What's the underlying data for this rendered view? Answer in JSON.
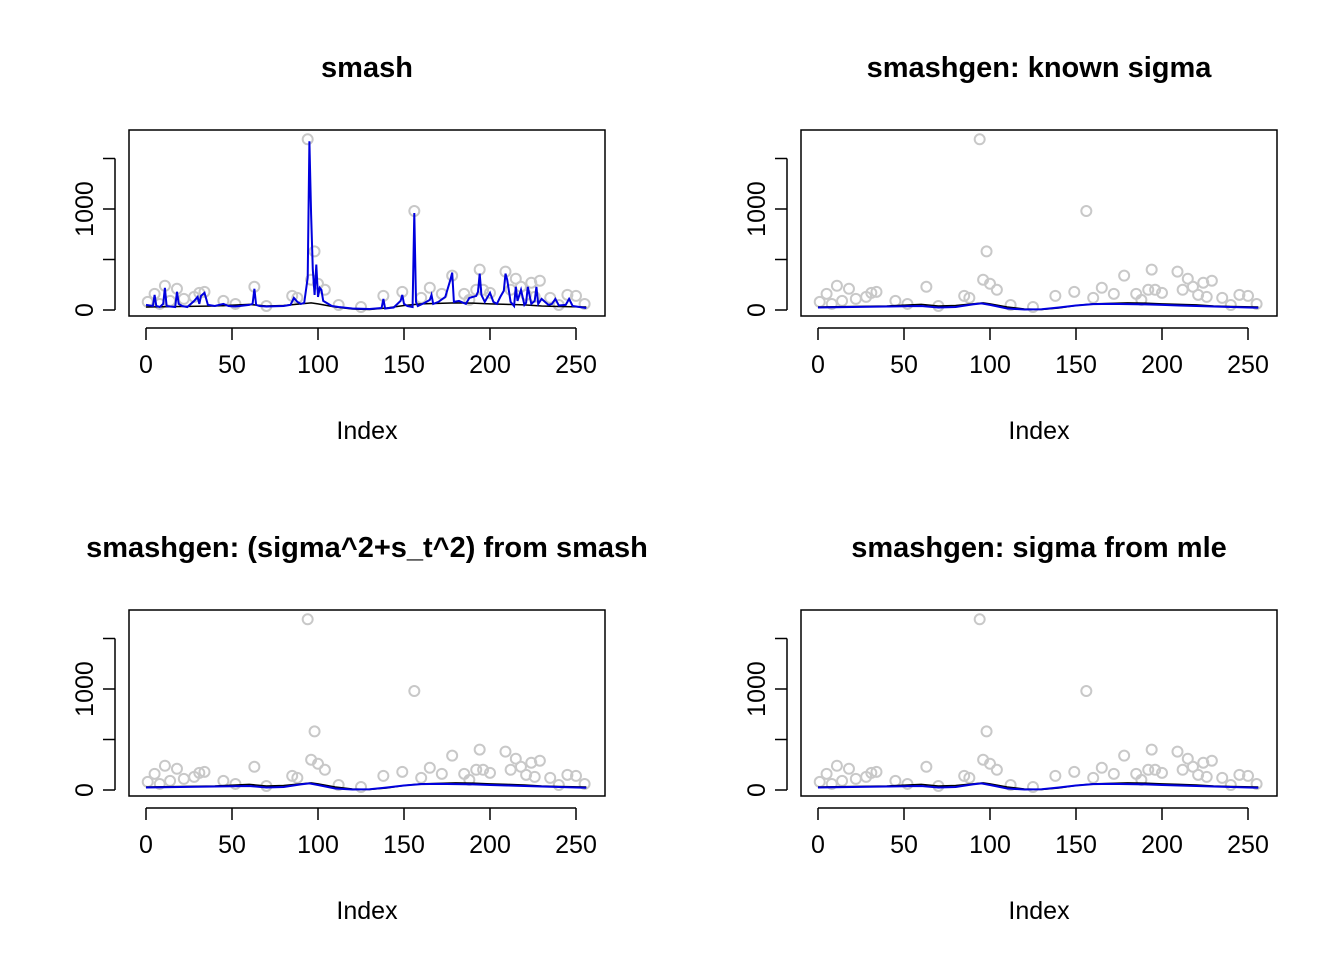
{
  "chart_data": [
    {
      "type": "line",
      "title": "smash",
      "xlabel": "Index",
      "ylabel": "",
      "xlim": [
        0,
        256
      ],
      "ylim": [
        0,
        1700
      ],
      "xticks": [
        "0",
        "50",
        "100",
        "150",
        "200",
        "250"
      ],
      "yticks": [
        "0",
        "1000"
      ],
      "series": [
        {
          "role": "observations",
          "style": "points",
          "color": "#c8c8c8",
          "x": [
            1,
            5,
            8,
            11,
            14,
            18,
            22,
            28,
            31,
            34,
            45,
            52,
            63,
            70,
            85,
            88,
            94,
            96,
            98,
            100,
            104,
            112,
            125,
            138,
            149,
            156,
            160,
            165,
            172,
            178,
            185,
            188,
            192,
            194,
            196,
            200,
            209,
            212,
            215,
            218,
            221,
            224,
            226,
            229,
            235,
            240,
            245,
            250,
            255
          ],
          "y": [
            80,
            160,
            60,
            240,
            90,
            210,
            110,
            130,
            170,
            180,
            90,
            60,
            230,
            40,
            140,
            120,
            1690,
            300,
            580,
            260,
            200,
            50,
            30,
            140,
            180,
            980,
            120,
            220,
            160,
            340,
            160,
            100,
            200,
            400,
            200,
            170,
            380,
            200,
            310,
            230,
            150,
            270,
            130,
            290,
            120,
            50,
            150,
            140,
            60
          ]
        },
        {
          "role": "truth",
          "style": "line",
          "color": "#000000",
          "x": [
            0,
            20,
            40,
            60,
            70,
            80,
            90,
            96,
            100,
            110,
            120,
            130,
            140,
            150,
            160,
            170,
            180,
            190,
            200,
            210,
            220,
            230,
            240,
            256
          ],
          "y": [
            30,
            35,
            40,
            55,
            40,
            45,
            60,
            70,
            60,
            30,
            10,
            5,
            20,
            45,
            60,
            65,
            70,
            68,
            60,
            55,
            50,
            40,
            35,
            30
          ]
        },
        {
          "role": "smash estimate",
          "style": "line",
          "color": "#0000dd",
          "x": [
            0,
            4,
            5,
            6,
            8,
            10,
            11,
            12,
            14,
            17,
            18,
            19,
            21,
            24,
            28,
            30,
            31,
            32,
            34,
            36,
            40,
            45,
            48,
            52,
            60,
            62,
            63,
            64,
            66,
            70,
            80,
            84,
            86,
            88,
            90,
            92,
            94,
            95,
            96,
            97,
            98,
            99,
            100,
            101,
            102,
            103,
            104,
            106,
            108,
            112,
            120,
            130,
            137,
            138,
            139,
            144,
            148,
            149,
            150,
            152,
            155,
            156,
            157,
            158,
            162,
            165,
            166,
            167,
            170,
            174,
            177,
            178,
            179,
            182,
            186,
            188,
            192,
            193,
            194,
            195,
            197,
            200,
            202,
            204,
            206,
            208,
            209,
            210,
            212,
            214,
            215,
            216,
            218,
            220,
            221,
            222,
            224,
            226,
            227,
            228,
            230,
            232,
            234,
            236,
            238,
            240,
            244,
            246,
            248,
            252,
            256
          ],
          "y": [
            50,
            40,
            150,
            40,
            30,
            60,
            220,
            40,
            35,
            30,
            180,
            60,
            40,
            30,
            90,
            130,
            60,
            140,
            170,
            50,
            40,
            60,
            40,
            35,
            50,
            60,
            210,
            50,
            40,
            35,
            40,
            50,
            120,
            80,
            60,
            70,
            320,
            1670,
            950,
            400,
            150,
            450,
            130,
            220,
            200,
            90,
            80,
            60,
            40,
            30,
            15,
            10,
            20,
            110,
            15,
            25,
            90,
            150,
            60,
            40,
            30,
            960,
            80,
            40,
            70,
            100,
            150,
            60,
            80,
            130,
            300,
            370,
            80,
            90,
            60,
            120,
            140,
            180,
            360,
            150,
            80,
            170,
            80,
            60,
            130,
            190,
            360,
            300,
            80,
            40,
            230,
            90,
            200,
            50,
            70,
            230,
            60,
            90,
            230,
            60,
            110,
            80,
            50,
            60,
            110,
            45,
            50,
            110,
            40,
            30,
            20
          ]
        }
      ]
    },
    {
      "type": "line",
      "title": "smashgen: known sigma",
      "xlabel": "Index",
      "ylabel": "",
      "xlim": [
        0,
        256
      ],
      "ylim": [
        0,
        1700
      ],
      "xticks": [
        "0",
        "50",
        "100",
        "150",
        "200",
        "250"
      ],
      "yticks": [
        "0",
        "1000"
      ],
      "series": [
        {
          "role": "observations",
          "style": "points",
          "color": "#c8c8c8",
          "x": [
            1,
            5,
            8,
            11,
            14,
            18,
            22,
            28,
            31,
            34,
            45,
            52,
            63,
            70,
            85,
            88,
            94,
            96,
            98,
            100,
            104,
            112,
            125,
            138,
            149,
            156,
            160,
            165,
            172,
            178,
            185,
            188,
            192,
            194,
            196,
            200,
            209,
            212,
            215,
            218,
            221,
            224,
            226,
            229,
            235,
            240,
            245,
            250,
            255
          ],
          "y": [
            80,
            160,
            60,
            240,
            90,
            210,
            110,
            130,
            170,
            180,
            90,
            60,
            230,
            40,
            140,
            120,
            1690,
            300,
            580,
            260,
            200,
            50,
            30,
            140,
            180,
            980,
            120,
            220,
            160,
            340,
            160,
            100,
            200,
            400,
            200,
            170,
            380,
            200,
            310,
            230,
            150,
            270,
            130,
            290,
            120,
            50,
            150,
            140,
            60
          ]
        },
        {
          "role": "truth",
          "style": "line",
          "color": "#000000",
          "x": [
            0,
            20,
            40,
            60,
            70,
            80,
            90,
            96,
            100,
            110,
            120,
            130,
            140,
            150,
            160,
            170,
            180,
            190,
            200,
            210,
            220,
            230,
            240,
            256
          ],
          "y": [
            30,
            35,
            40,
            55,
            40,
            45,
            60,
            70,
            60,
            30,
            10,
            5,
            20,
            45,
            60,
            65,
            70,
            68,
            60,
            55,
            50,
            40,
            35,
            30
          ]
        },
        {
          "role": "estimate",
          "style": "line",
          "color": "#0000dd",
          "x": [
            0,
            10,
            20,
            30,
            40,
            50,
            60,
            70,
            80,
            90,
            95,
            100,
            110,
            120,
            130,
            140,
            150,
            160,
            170,
            180,
            190,
            200,
            210,
            220,
            230,
            240,
            250,
            256
          ],
          "y": [
            25,
            28,
            30,
            32,
            35,
            38,
            40,
            25,
            30,
            55,
            65,
            50,
            15,
            5,
            8,
            25,
            45,
            58,
            60,
            58,
            55,
            50,
            45,
            40,
            35,
            30,
            25,
            22
          ]
        }
      ]
    },
    {
      "type": "line",
      "title": "smashgen: (sigma^2+s_t^2) from smash",
      "xlabel": "Index",
      "ylabel": "",
      "xlim": [
        0,
        256
      ],
      "ylim": [
        0,
        1700
      ],
      "xticks": [
        "0",
        "50",
        "100",
        "150",
        "200",
        "250"
      ],
      "yticks": [
        "0",
        "1000"
      ],
      "series": [
        {
          "role": "observations",
          "style": "points",
          "color": "#c8c8c8",
          "x": [
            1,
            5,
            8,
            11,
            14,
            18,
            22,
            28,
            31,
            34,
            45,
            52,
            63,
            70,
            85,
            88,
            94,
            96,
            98,
            100,
            104,
            112,
            125,
            138,
            149,
            156,
            160,
            165,
            172,
            178,
            185,
            188,
            192,
            194,
            196,
            200,
            209,
            212,
            215,
            218,
            221,
            224,
            226,
            229,
            235,
            240,
            245,
            250,
            255
          ],
          "y": [
            80,
            160,
            60,
            240,
            90,
            210,
            110,
            130,
            170,
            180,
            90,
            60,
            230,
            40,
            140,
            120,
            1690,
            300,
            580,
            260,
            200,
            50,
            30,
            140,
            180,
            980,
            120,
            220,
            160,
            340,
            160,
            100,
            200,
            400,
            200,
            170,
            380,
            200,
            310,
            230,
            150,
            270,
            130,
            290,
            120,
            50,
            150,
            140,
            60
          ]
        },
        {
          "role": "truth",
          "style": "line",
          "color": "#000000",
          "x": [
            0,
            20,
            40,
            60,
            70,
            80,
            90,
            96,
            100,
            110,
            120,
            130,
            140,
            150,
            160,
            170,
            180,
            190,
            200,
            210,
            220,
            230,
            240,
            256
          ],
          "y": [
            30,
            35,
            40,
            55,
            40,
            45,
            60,
            70,
            60,
            30,
            10,
            5,
            20,
            45,
            60,
            65,
            70,
            68,
            60,
            55,
            50,
            40,
            35,
            30
          ]
        },
        {
          "role": "estimate",
          "style": "line",
          "color": "#0000dd",
          "x": [
            0,
            10,
            20,
            30,
            40,
            50,
            60,
            70,
            80,
            90,
            95,
            100,
            110,
            120,
            130,
            140,
            150,
            160,
            170,
            180,
            190,
            200,
            210,
            220,
            230,
            240,
            250,
            256
          ],
          "y": [
            25,
            28,
            30,
            32,
            35,
            38,
            40,
            25,
            30,
            55,
            65,
            50,
            15,
            5,
            8,
            25,
            45,
            58,
            60,
            58,
            55,
            50,
            45,
            40,
            35,
            30,
            25,
            22
          ]
        }
      ]
    },
    {
      "type": "line",
      "title": "smashgen: sigma from mle",
      "xlabel": "Index",
      "ylabel": "",
      "xlim": [
        0,
        256
      ],
      "ylim": [
        0,
        1700
      ],
      "xticks": [
        "0",
        "50",
        "100",
        "150",
        "200",
        "250"
      ],
      "yticks": [
        "0",
        "1000"
      ],
      "series": [
        {
          "role": "observations",
          "style": "points",
          "color": "#c8c8c8",
          "x": [
            1,
            5,
            8,
            11,
            14,
            18,
            22,
            28,
            31,
            34,
            45,
            52,
            63,
            70,
            85,
            88,
            94,
            96,
            98,
            100,
            104,
            112,
            125,
            138,
            149,
            156,
            160,
            165,
            172,
            178,
            185,
            188,
            192,
            194,
            196,
            200,
            209,
            212,
            215,
            218,
            221,
            224,
            226,
            229,
            235,
            240,
            245,
            250,
            255
          ],
          "y": [
            80,
            160,
            60,
            240,
            90,
            210,
            110,
            130,
            170,
            180,
            90,
            60,
            230,
            40,
            140,
            120,
            1690,
            300,
            580,
            260,
            200,
            50,
            30,
            140,
            180,
            980,
            120,
            220,
            160,
            340,
            160,
            100,
            200,
            400,
            200,
            170,
            380,
            200,
            310,
            230,
            150,
            270,
            130,
            290,
            120,
            50,
            150,
            140,
            60
          ]
        },
        {
          "role": "truth",
          "style": "line",
          "color": "#000000",
          "x": [
            0,
            20,
            40,
            60,
            70,
            80,
            90,
            96,
            100,
            110,
            120,
            130,
            140,
            150,
            160,
            170,
            180,
            190,
            200,
            210,
            220,
            230,
            240,
            256
          ],
          "y": [
            30,
            35,
            40,
            55,
            40,
            45,
            60,
            70,
            60,
            30,
            10,
            5,
            20,
            45,
            60,
            65,
            70,
            68,
            60,
            55,
            50,
            40,
            35,
            30
          ]
        },
        {
          "role": "estimate",
          "style": "line",
          "color": "#0000dd",
          "x": [
            0,
            10,
            20,
            30,
            40,
            50,
            60,
            70,
            80,
            90,
            95,
            100,
            110,
            120,
            130,
            140,
            150,
            160,
            170,
            180,
            190,
            200,
            210,
            220,
            230,
            240,
            250,
            256
          ],
          "y": [
            25,
            28,
            30,
            32,
            35,
            38,
            40,
            25,
            30,
            55,
            65,
            50,
            15,
            5,
            8,
            25,
            45,
            58,
            60,
            58,
            55,
            50,
            45,
            40,
            35,
            30,
            25,
            22
          ]
        }
      ]
    }
  ]
}
